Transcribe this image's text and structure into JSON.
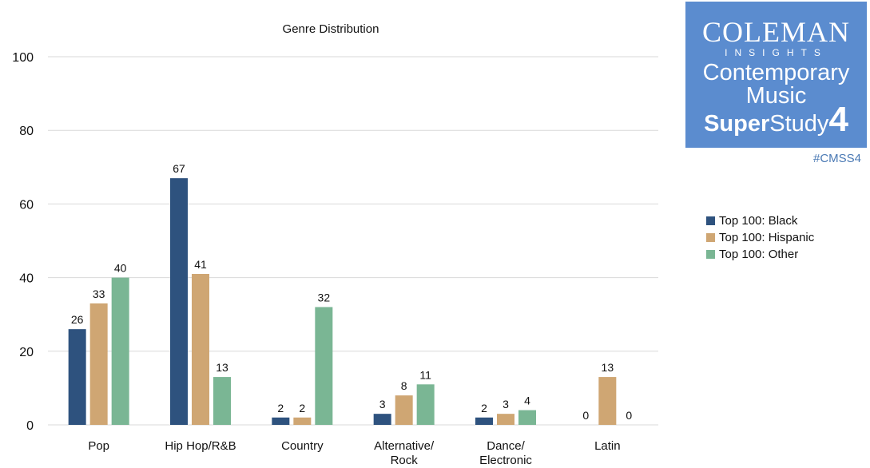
{
  "chart_data": {
    "type": "bar",
    "title": "Genre Distribution",
    "categories": [
      [
        "Pop"
      ],
      [
        "Hip Hop/R&B"
      ],
      [
        "Country"
      ],
      [
        "Alternative/",
        "Rock"
      ],
      [
        "Dance/",
        "Electronic"
      ],
      [
        "Latin"
      ]
    ],
    "series": [
      {
        "name": "Top 100: Black",
        "color": "#2e527e",
        "values": [
          26,
          67,
          2,
          3,
          2,
          0
        ]
      },
      {
        "name": "Top 100: Hispanic",
        "color": "#cfa673",
        "values": [
          33,
          41,
          2,
          8,
          3,
          13
        ]
      },
      {
        "name": "Top 100: Other",
        "color": "#7ab694",
        "values": [
          40,
          13,
          32,
          11,
          4,
          0
        ]
      }
    ],
    "ylim": [
      0,
      100
    ],
    "yticks": [
      0,
      20,
      40,
      60,
      80,
      100
    ],
    "grid": true,
    "legend_position": "right"
  },
  "logo": {
    "line1": "COLEMAN",
    "line2": "INSIGHTS",
    "line3": "Contemporary",
    "line4": "Music",
    "line5_bold": "Super",
    "line5_regular": "Study",
    "line5_number": "4",
    "hashtag": "#CMSS4"
  }
}
